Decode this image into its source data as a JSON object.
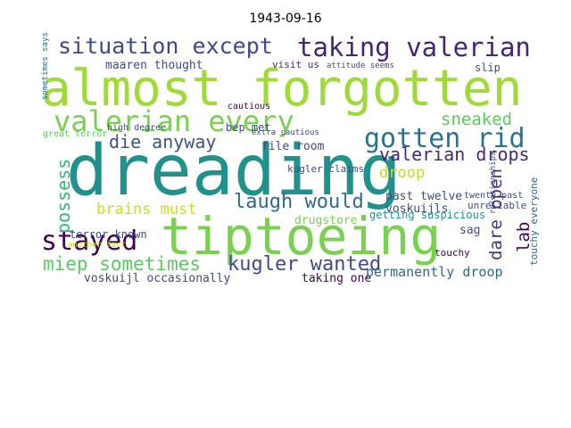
{
  "chart_data": {
    "type": "wordcloud",
    "title": "1943-09-16",
    "words": [
      "situation except",
      "taking valerian",
      "almost forgotten",
      "valerian every",
      "gotten rid",
      "dreading",
      "tiptoeing",
      "stayed",
      "die anyway",
      "sneaked",
      "valerian drops",
      "droop",
      "laugh would",
      "possess",
      "brains must",
      "miep sometimes",
      "kugler wanted",
      "voskuijl occasionally",
      "taking one",
      "permanently droop",
      "dare open",
      "lab",
      "past twelve",
      "voskuijls",
      "getting suspicious",
      "sag",
      "touchy",
      "drugstore",
      "maaren thought",
      "visit us",
      "bep met",
      "file room",
      "kugler claims",
      "terror known",
      "slip",
      "unreliable",
      "touchy everyone",
      "sometimes says",
      "high degree",
      "great terror",
      "extra cautious",
      "cautious",
      "attitude seems",
      "twenty past",
      "another fact",
      "relationships"
    ]
  }
}
